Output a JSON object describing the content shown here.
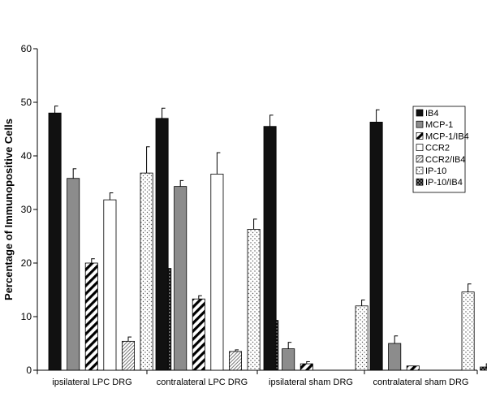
{
  "chart_data": {
    "type": "bar",
    "title": "",
    "xlabel": "",
    "ylabel": "Percentage of Immunopositive Cells",
    "ylim": [
      0,
      60
    ],
    "yticks": [
      0,
      10,
      20,
      30,
      40,
      50,
      60
    ],
    "grid": false,
    "legend_position": "right",
    "categories": [
      "ipsilateral LPC DRG",
      "contralateral LPC DRG",
      "ipsilateral sham DRG",
      "contralateral sham DRG"
    ],
    "series": [
      {
        "name": "IB4",
        "pattern": "solid-black",
        "values": [
          48.0,
          47.0,
          45.5,
          46.3
        ],
        "errors": [
          1.3,
          1.9,
          2.1,
          2.3
        ]
      },
      {
        "name": "MCP-1",
        "pattern": "solid-gray",
        "values": [
          35.8,
          34.3,
          4.0,
          5.0
        ],
        "errors": [
          1.8,
          1.1,
          1.2,
          1.4
        ]
      },
      {
        "name": "MCP-1/IB4",
        "pattern": "diagonal-hatch",
        "values": [
          20.0,
          13.3,
          1.2,
          0.8
        ],
        "errors": [
          0.8,
          0.6,
          0.4,
          0.0
        ]
      },
      {
        "name": "CCR2",
        "pattern": "white",
        "values": [
          31.8,
          36.6,
          0.0,
          0.0
        ],
        "errors": [
          1.3,
          4.0,
          0.0,
          0.0
        ]
      },
      {
        "name": "CCR2/IB4",
        "pattern": "fine-hatch",
        "values": [
          5.4,
          3.5,
          0.0,
          0.0
        ],
        "errors": [
          0.8,
          0.3,
          0.0,
          0.0
        ]
      },
      {
        "name": "IP-10",
        "pattern": "light-dots",
        "values": [
          36.8,
          26.3,
          12.0,
          14.6
        ],
        "errors": [
          4.9,
          1.9,
          1.1,
          1.5
        ]
      },
      {
        "name": "IP-10/IB4",
        "pattern": "dark-dots",
        "values": [
          19.0,
          9.3,
          0.0,
          0.6
        ],
        "errors": [
          2.3,
          0.6,
          0.0,
          0.6
        ]
      }
    ]
  }
}
